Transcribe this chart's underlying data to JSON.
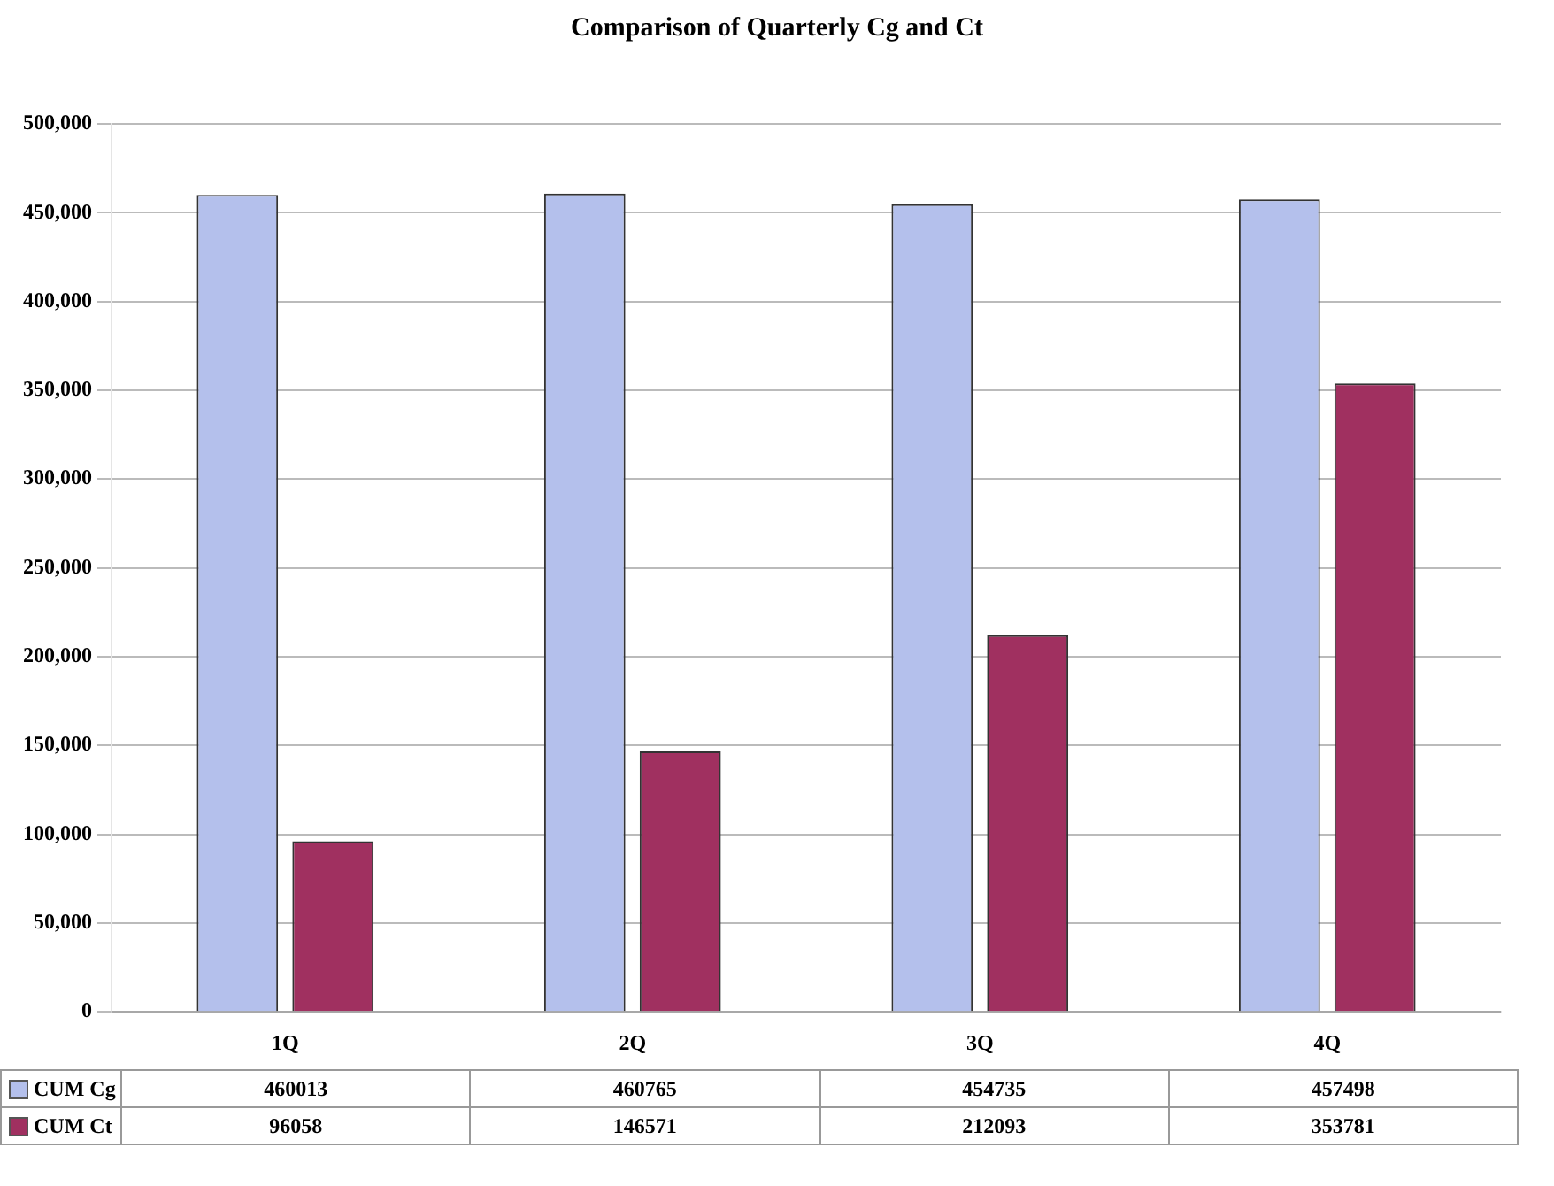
{
  "chart_data": {
    "type": "bar",
    "title": "Comparison of Quarterly Cg and Ct",
    "categories": [
      "1Q",
      "2Q",
      "3Q",
      "4Q"
    ],
    "series": [
      {
        "name": "CUM Cg",
        "color": "#b4c0ec",
        "values": [
          460013,
          460765,
          454735,
          457498
        ]
      },
      {
        "name": "CUM Ct",
        "color": "#a03060",
        "values": [
          96058,
          146571,
          212093,
          353781
        ]
      }
    ],
    "ylim": [
      0,
      500000
    ],
    "yticks": [
      0,
      {
        "value": 50000,
        "label": "50,000"
      },
      {
        "value": 100000,
        "label": "100,000"
      },
      {
        "value": 150000,
        "label": "150,000"
      },
      {
        "value": 200000,
        "label": "200,000"
      },
      {
        "value": 250000,
        "label": "250,000"
      },
      {
        "value": 300000,
        "label": "300,000"
      },
      {
        "value": 350000,
        "label": "350,000"
      },
      {
        "value": 400000,
        "label": "400,000"
      },
      {
        "value": 450000,
        "label": "450,000"
      },
      {
        "value": 500000,
        "label": "500,000"
      }
    ],
    "grid": "y",
    "legend": "bottom left",
    "data_labels": true
  }
}
